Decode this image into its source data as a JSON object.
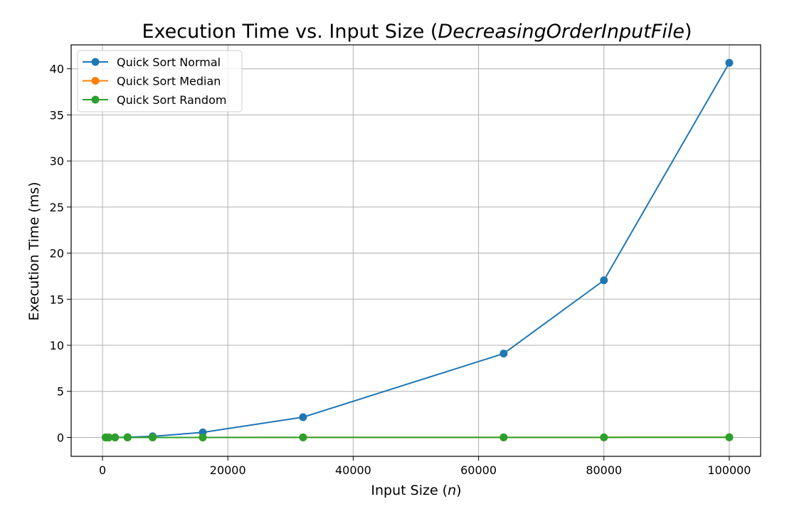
{
  "chart_data": {
    "type": "line",
    "title_prefix": "Execution Time vs. Input Size (",
    "title_italic": "DecreasingOrderInputFile",
    "title_suffix": ")",
    "xlabel_prefix": "Input Size (",
    "xlabel_italic": "n",
    "xlabel_suffix": ")",
    "ylabel": "Execution Time (ms)",
    "xlim": [
      -5000,
      105000
    ],
    "ylim": [
      -2.05,
      42.6
    ],
    "xticks": [
      0,
      20000,
      40000,
      60000,
      80000,
      100000
    ],
    "yticks": [
      0,
      5,
      10,
      15,
      20,
      25,
      30,
      35,
      40
    ],
    "grid": true,
    "legend_position": "top-left",
    "x": [
      500,
      1000,
      2000,
      4000,
      8000,
      16000,
      32000,
      64000,
      80000,
      100000
    ],
    "series": [
      {
        "name": "Quick Sort Normal",
        "color": "#1f77b4",
        "values": [
          0.0,
          0.0,
          0.01,
          0.03,
          0.12,
          0.55,
          2.2,
          9.1,
          17.05,
          40.65
        ]
      },
      {
        "name": "Quick Sort Median",
        "color": "#ff7f0e",
        "values": [
          0.0,
          0.0,
          0.0,
          0.0,
          0.0,
          0.0,
          0.01,
          0.01,
          0.01,
          0.02
        ]
      },
      {
        "name": "Quick Sort Random",
        "color": "#2ca02c",
        "values": [
          0.0,
          0.0,
          0.0,
          0.0,
          0.0,
          0.0,
          0.01,
          0.01,
          0.01,
          0.02
        ]
      }
    ]
  }
}
